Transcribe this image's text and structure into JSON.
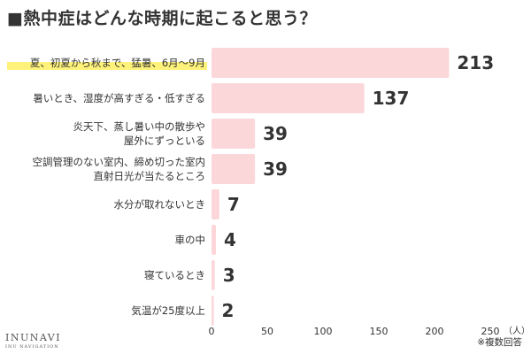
{
  "title": "■熱中症はどんな時期に起こると思う？",
  "footnote": "※複数回答",
  "brand": {
    "name": "INUNAVI",
    "tagline": "INU NAVIGATION"
  },
  "colors": {
    "bar": "#fcd7da",
    "highlight": "#fff27a",
    "text": "#333333",
    "axis": "#cccccc"
  },
  "chart_data": {
    "type": "bar",
    "orientation": "horizontal",
    "title": "■熱中症はどんな時期に起こると思う？",
    "categories": [
      [
        "夏、初夏から秋まで、猛暑、6月〜9月"
      ],
      [
        "暑いとき、湿度が高すぎる・低すぎる"
      ],
      [
        "炎天下、蒸し暑い中の散歩や",
        "屋外にずっといる"
      ],
      [
        "空調管理のない室内、締め切った室内",
        "直射日光が当たるところ"
      ],
      [
        "水分が取れないとき"
      ],
      [
        "車の中"
      ],
      [
        "寝ているとき"
      ],
      [
        "気温が25度以上"
      ]
    ],
    "values": [
      213,
      137,
      39,
      39,
      7,
      4,
      3,
      2
    ],
    "highlighted_index": 0,
    "xlim": [
      0,
      250
    ],
    "xticks": [
      0,
      50,
      100,
      150,
      200,
      250
    ],
    "unit": "（人）",
    "grid": false
  }
}
